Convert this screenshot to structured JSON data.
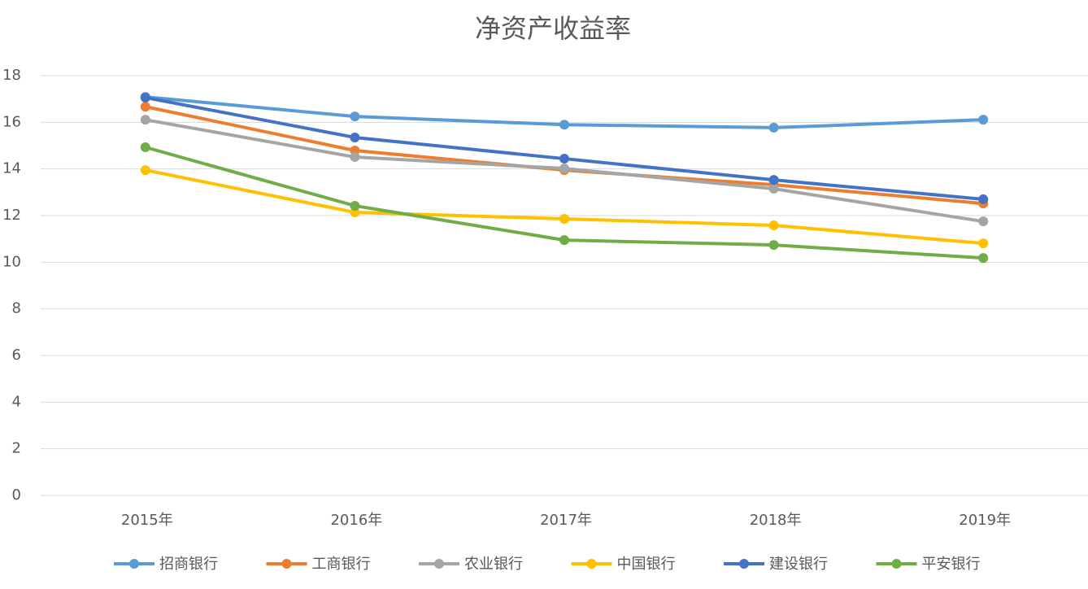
{
  "chart_data": {
    "type": "line",
    "title": "净资产收益率",
    "categories": [
      "2015年",
      "2016年",
      "2017年",
      "2018年",
      "2019年"
    ],
    "series": [
      {
        "name": "招商银行",
        "color": "#5b9bd5",
        "values": [
          17.09,
          16.25,
          15.9,
          15.77,
          16.11
        ]
      },
      {
        "name": "工商银行",
        "color": "#ed7d31",
        "values": [
          16.67,
          14.79,
          13.95,
          13.32,
          12.52
        ]
      },
      {
        "name": "农业银行",
        "color": "#a5a5a5",
        "values": [
          16.11,
          14.51,
          14.02,
          13.15,
          11.75
        ]
      },
      {
        "name": "中国银行",
        "color": "#ffc000",
        "values": [
          13.95,
          12.14,
          11.86,
          11.58,
          10.81
        ]
      },
      {
        "name": "建设银行",
        "color": "#4472c4",
        "values": [
          17.06,
          15.35,
          14.44,
          13.53,
          12.7
        ]
      },
      {
        "name": "平安银行",
        "color": "#70ad47",
        "values": [
          14.93,
          12.42,
          10.95,
          10.74,
          10.18
        ]
      }
    ],
    "ylim": [
      0,
      18
    ],
    "yticks": [
      0,
      2,
      4,
      6,
      8,
      10,
      12,
      14,
      16,
      18
    ],
    "grid": true,
    "legend": "bottom"
  }
}
